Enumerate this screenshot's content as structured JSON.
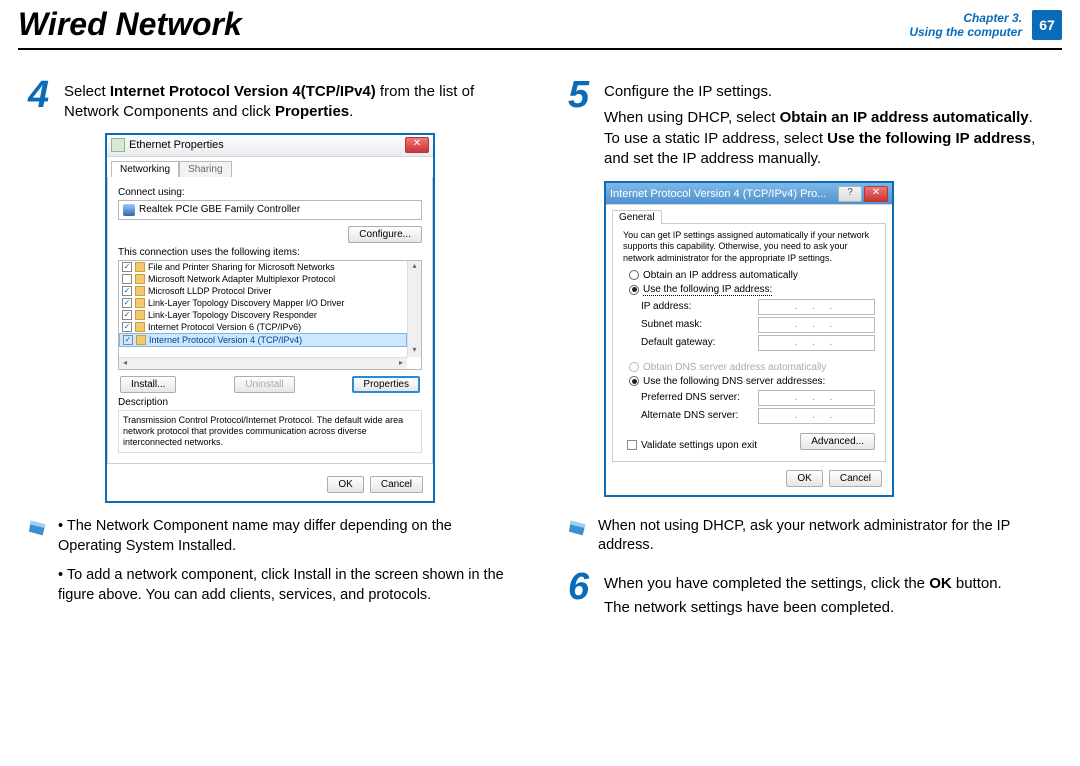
{
  "header": {
    "title": "Wired Network",
    "chapter_line1": "Chapter 3.",
    "chapter_line2": "Using the computer",
    "page_number": "67"
  },
  "step4": {
    "num": "4",
    "pre": "Select ",
    "bold1": "Internet Protocol Version 4(TCP/IPv4)",
    "mid": " from the list of Network Components and click ",
    "bold2": "Properties",
    "post": "."
  },
  "step5": {
    "num": "5",
    "line1": "Configure the IP settings.",
    "line2a": "When using DHCP, select ",
    "line2b": "Obtain an IP address automatically",
    "line2c": ". To use a static IP address, select ",
    "line2d": "Use the following IP address",
    "line2e": ", and set the IP address manually."
  },
  "note_left": {
    "bullet1": "The Network Component name may differ depending on the Operating System Installed.",
    "bullet2": "To add a network component, click Install in the screen shown in the figure above. You can add clients, services, and protocols."
  },
  "note_right": {
    "text": "When not using DHCP, ask your network administrator for the IP address."
  },
  "step6": {
    "num": "6",
    "text_a": "When you have completed the settings, click the ",
    "text_b": "OK",
    "text_c": " button.",
    "text_d": "The network settings have been completed."
  },
  "eth_dialog": {
    "title": "Ethernet Properties",
    "tab1": "Networking",
    "tab2": "Sharing",
    "connect_using": "Connect using:",
    "nic": "Realtek PCIe GBE Family Controller",
    "configure_btn": "Configure...",
    "uses_label": "This connection uses the following items:",
    "items": [
      {
        "checked": true,
        "label": "File and Printer Sharing for Microsoft Networks"
      },
      {
        "checked": false,
        "label": "Microsoft Network Adapter Multiplexor Protocol"
      },
      {
        "checked": true,
        "label": "Microsoft LLDP Protocol Driver"
      },
      {
        "checked": true,
        "label": "Link-Layer Topology Discovery Mapper I/O Driver"
      },
      {
        "checked": true,
        "label": "Link-Layer Topology Discovery Responder"
      },
      {
        "checked": true,
        "label": "Internet Protocol Version 6 (TCP/IPv6)"
      },
      {
        "checked": true,
        "label": "Internet Protocol Version 4 (TCP/IPv4)",
        "selected": true
      }
    ],
    "install_btn": "Install...",
    "uninstall_btn": "Uninstall",
    "properties_btn": "Properties",
    "desc_label": "Description",
    "desc_text": "Transmission Control Protocol/Internet Protocol. The default wide area network protocol that provides communication across diverse interconnected networks.",
    "ok": "OK",
    "cancel": "Cancel"
  },
  "ip_dialog": {
    "title": "Internet Protocol Version 4 (TCP/IPv4) Pro...",
    "help": "?",
    "general_tab": "General",
    "info": "You can get IP settings assigned automatically if your network supports this capability. Otherwise, you need to ask your network administrator for the appropriate IP settings.",
    "radio_auto_ip": "Obtain an IP address automatically",
    "radio_static_ip": "Use the following IP address:",
    "lbl_ip": "IP address:",
    "lbl_subnet": "Subnet mask:",
    "lbl_gateway": "Default gateway:",
    "radio_auto_dns": "Obtain DNS server address automatically",
    "radio_static_dns": "Use the following DNS server addresses:",
    "lbl_pref_dns": "Preferred DNS server:",
    "lbl_alt_dns": "Alternate DNS server:",
    "validate": "Validate settings upon exit",
    "advanced": "Advanced...",
    "ok": "OK",
    "cancel": "Cancel",
    "ip_dots": ".   .   ."
  },
  "colors": {
    "accent": "#0a6cb8",
    "highlight": "#2a8ad4"
  }
}
